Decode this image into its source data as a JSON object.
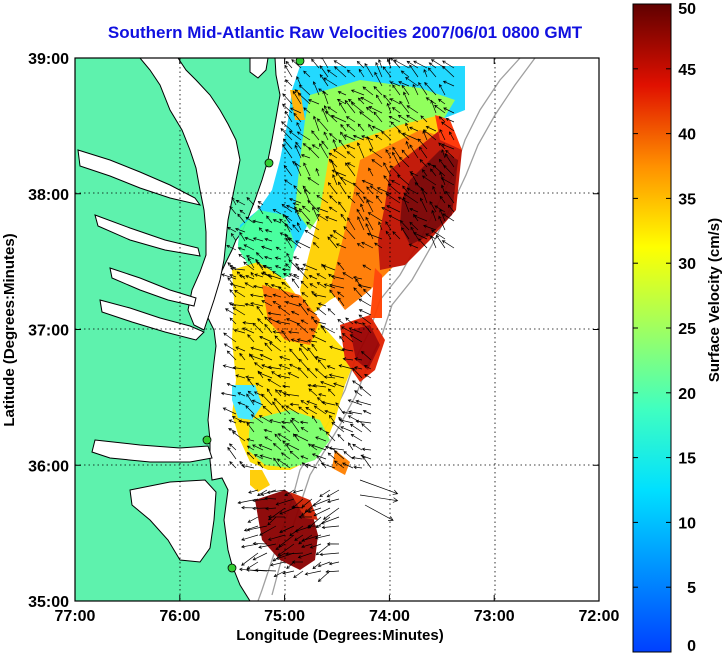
{
  "title": "Southern Mid-Atlantic Raw Velocities 2007/06/01 0800 GMT",
  "x_axis": {
    "label": "Longitude (Degrees:Minutes)",
    "ticks": [
      "77:00",
      "76:00",
      "75:00",
      "74:00",
      "73:00",
      "72:00"
    ]
  },
  "y_axis": {
    "label": "Latitude (Degrees:Minutes)",
    "ticks": [
      "39:00",
      "38:00",
      "37:00",
      "36:00",
      "35:00"
    ]
  },
  "colorbar": {
    "label": "Surface Velocity (cm/s)",
    "ticks": [
      "50",
      "45",
      "40",
      "35",
      "30",
      "25",
      "20",
      "15",
      "10",
      "5",
      "0"
    ],
    "range": [
      0,
      50
    ],
    "colormap": "jet"
  },
  "colors": {
    "land": "#5ef2ad",
    "ocean": "#ffffff",
    "coastline": "#000000",
    "bathymetry": "#a0a0a0",
    "title": "#1010e0",
    "stations": "#33cc33"
  },
  "map": {
    "lon_range": [
      -77,
      -72
    ],
    "lat_range": [
      35,
      39
    ],
    "grid": "dotted",
    "stations": [
      "station-1",
      "station-2",
      "station-3",
      "station-4"
    ]
  }
}
